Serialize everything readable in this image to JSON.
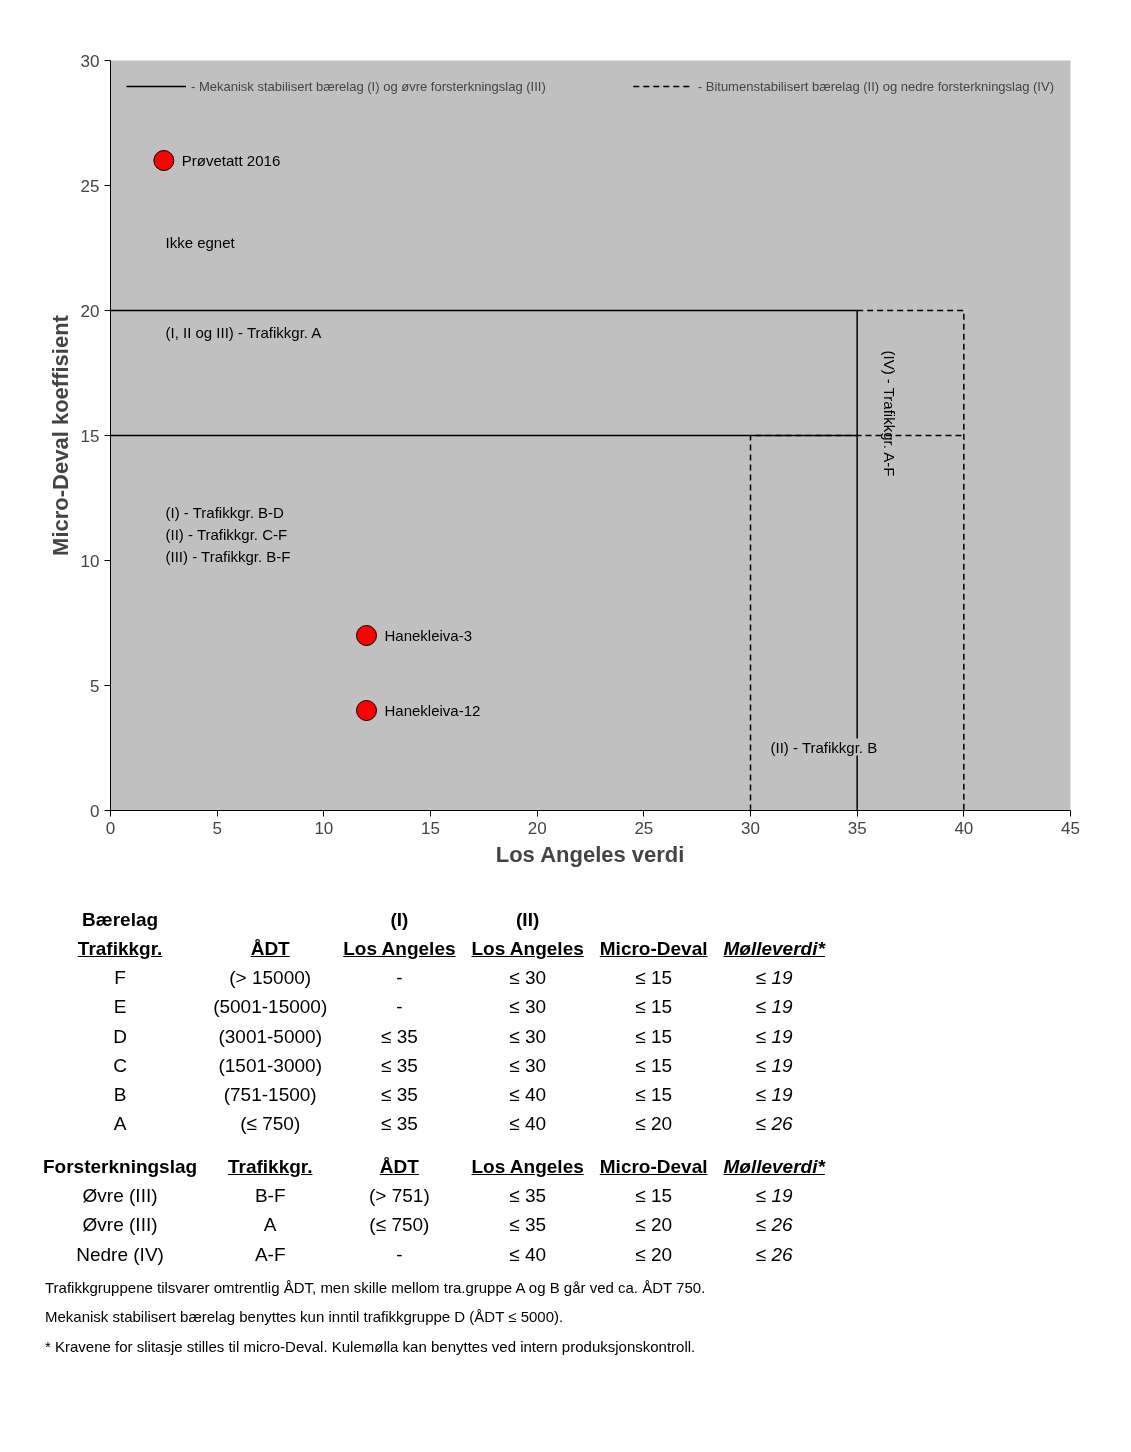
{
  "chart_data": {
    "type": "line",
    "xlabel": "Los Angeles verdi",
    "ylabel": "Micro-Deval koeffisient",
    "xlim": [
      0,
      45
    ],
    "ylim": [
      0,
      30
    ],
    "xticks": [
      0,
      5,
      10,
      15,
      20,
      25,
      30,
      35,
      40,
      45
    ],
    "yticks": [
      0,
      5,
      10,
      15,
      20,
      25,
      30
    ],
    "legend": "top",
    "series": [
      {
        "type": "scatter",
        "marker": "circle",
        "x": [
          2.5,
          12,
          12
        ],
        "values": [
          26,
          7,
          4
        ],
        "color": "#ff0000"
      },
      {
        "name": "- Mekanisk stabilisert bærelag (I) og øvre forsterkningslag (III)",
        "color": "#000000",
        "line_style": "solid",
        "x": [
          0,
          35,
          35
        ],
        "values": [
          20,
          20,
          0
        ]
      },
      {
        "color": "#000000",
        "line_style": "solid",
        "x": [
          0,
          35
        ],
        "values": [
          15,
          15
        ]
      },
      {
        "name": "- Bitumenstabilisert bærelag (II) og nedre forsterkningslag (IV)",
        "color": "#000000",
        "line_style": "dashed",
        "x": [
          35,
          40,
          40
        ],
        "values": [
          20,
          20,
          0
        ]
      },
      {
        "color": "#000000",
        "line_style": "dashed",
        "x": [
          30,
          30,
          40
        ],
        "values": [
          0,
          15,
          15
        ]
      }
    ],
    "annotations": [
      "Prøvetatt 2016",
      "Hanekleiva-3",
      "Hanekleiva-12",
      "Ikke egnet",
      "(I, II og III) - Trafikkgr. A",
      "(I)   - Trafikkgr. B-D",
      "(II)  - Trafikkgr. C-F",
      "(III) - Trafikkgr. B-F",
      "(IV) - Trafikkgr. A-F",
      "(II) - Trafikkgr. B",
      "Bærelag\t\t(I)\t(II)\t\t",
      "Trafikkgr.\tÅDT\tLos Angeles\tLos Angeles\tMicro-Deval\tMølleverdi*",
      "F\t(> 15000)\t-\t≤ 30\t≤ 15\t≤ 19",
      "E\t(5001-15000)\t-\t≤ 30\t≤ 15\t≤ 19",
      "D\t(3001-5000)\t≤ 35\t≤ 30\t≤ 15\t≤ 19",
      "C\t(1501-3000)\t≤ 35\t≤ 30\t≤ 15\t≤ 19",
      "B\t(751-1500)\t≤ 35\t≤ 40\t≤ 15\t≤ 19",
      "A\t(≤ 750)\t≤ 35\t≤ 40\t≤ 20\t≤ 26",
      "Forsterkningslag\tTrafikkgr.\tÅDT\tLos Angeles\tMicro-Deval\tMølleverdi*",
      "Øvre (III)\tB-F\t(> 751)\t≤ 35\t≤ 15\t≤ 19",
      "Øvre (III)\tA\t(≤ 750)\t≤ 35\t≤ 20\t≤ 26",
      "Nedre (IV)\tA-F\t-\t≤ 40\t≤ 20\t≤ 26",
      "Trafikkgruppene tilsvarer omtrentlig ÅDT, men skille mellom tra.gruppe A og B går ved ca. ÅDT 750.",
      "Mekanisk stabilisert bærelag benyttes kun inntil trafikkgruppe D (ÅDT ≤ 5000).",
      "* Kravene for slitasje stilles til micro-Deval. Kulemølla kan benyttes ved intern produksjonskontroll."
    ]
  }
}
